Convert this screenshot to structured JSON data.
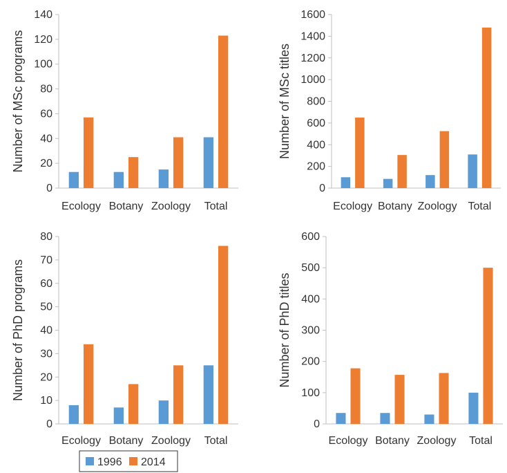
{
  "colors": {
    "1996": "#5B9BD5",
    "2014": "#ED7D31",
    "axis": "#BFBFBF",
    "text": "#333333"
  },
  "legend": {
    "items": [
      {
        "label": "1996"
      },
      {
        "label": "2014"
      }
    ]
  },
  "chart_data": [
    {
      "type": "bar",
      "title": "",
      "xlabel": "",
      "ylabel": "Number of MSc programs",
      "categories": [
        "Ecology",
        "Botany",
        "Zoology",
        "Total"
      ],
      "ylim": [
        0,
        140
      ],
      "yticks": [
        0,
        20,
        40,
        60,
        80,
        100,
        120,
        140
      ],
      "grid": false,
      "series": [
        {
          "name": "1996",
          "values": [
            13,
            13,
            15,
            41
          ]
        },
        {
          "name": "2014",
          "values": [
            57,
            25,
            41,
            123
          ]
        }
      ]
    },
    {
      "type": "bar",
      "title": "",
      "xlabel": "",
      "ylabel": "Number of MSc titles",
      "categories": [
        "Ecology",
        "Botany",
        "Zoology",
        "Total"
      ],
      "ylim": [
        0,
        1600
      ],
      "yticks": [
        0,
        200,
        400,
        600,
        800,
        1000,
        1200,
        1400,
        1600
      ],
      "grid": false,
      "series": [
        {
          "name": "1996",
          "values": [
            100,
            85,
            120,
            310
          ]
        },
        {
          "name": "2014",
          "values": [
            650,
            305,
            525,
            1480
          ]
        }
      ]
    },
    {
      "type": "bar",
      "title": "",
      "xlabel": "",
      "ylabel": "Number of PhD programs",
      "categories": [
        "Ecology",
        "Botany",
        "Zoology",
        "Total"
      ],
      "ylim": [
        0,
        80
      ],
      "yticks": [
        0,
        10,
        20,
        30,
        40,
        50,
        60,
        70,
        80
      ],
      "grid": false,
      "series": [
        {
          "name": "1996",
          "values": [
            8,
            7,
            10,
            25
          ]
        },
        {
          "name": "2014",
          "values": [
            34,
            17,
            25,
            76
          ]
        }
      ]
    },
    {
      "type": "bar",
      "title": "",
      "xlabel": "",
      "ylabel": "Number of PhD titles",
      "categories": [
        "Ecology",
        "Botany",
        "Zoology",
        "Total"
      ],
      "ylim": [
        0,
        600
      ],
      "yticks": [
        0,
        100,
        200,
        300,
        400,
        500,
        600
      ],
      "grid": false,
      "series": [
        {
          "name": "1996",
          "values": [
            35,
            35,
            30,
            100
          ]
        },
        {
          "name": "2014",
          "values": [
            178,
            157,
            163,
            500
          ]
        }
      ]
    }
  ]
}
